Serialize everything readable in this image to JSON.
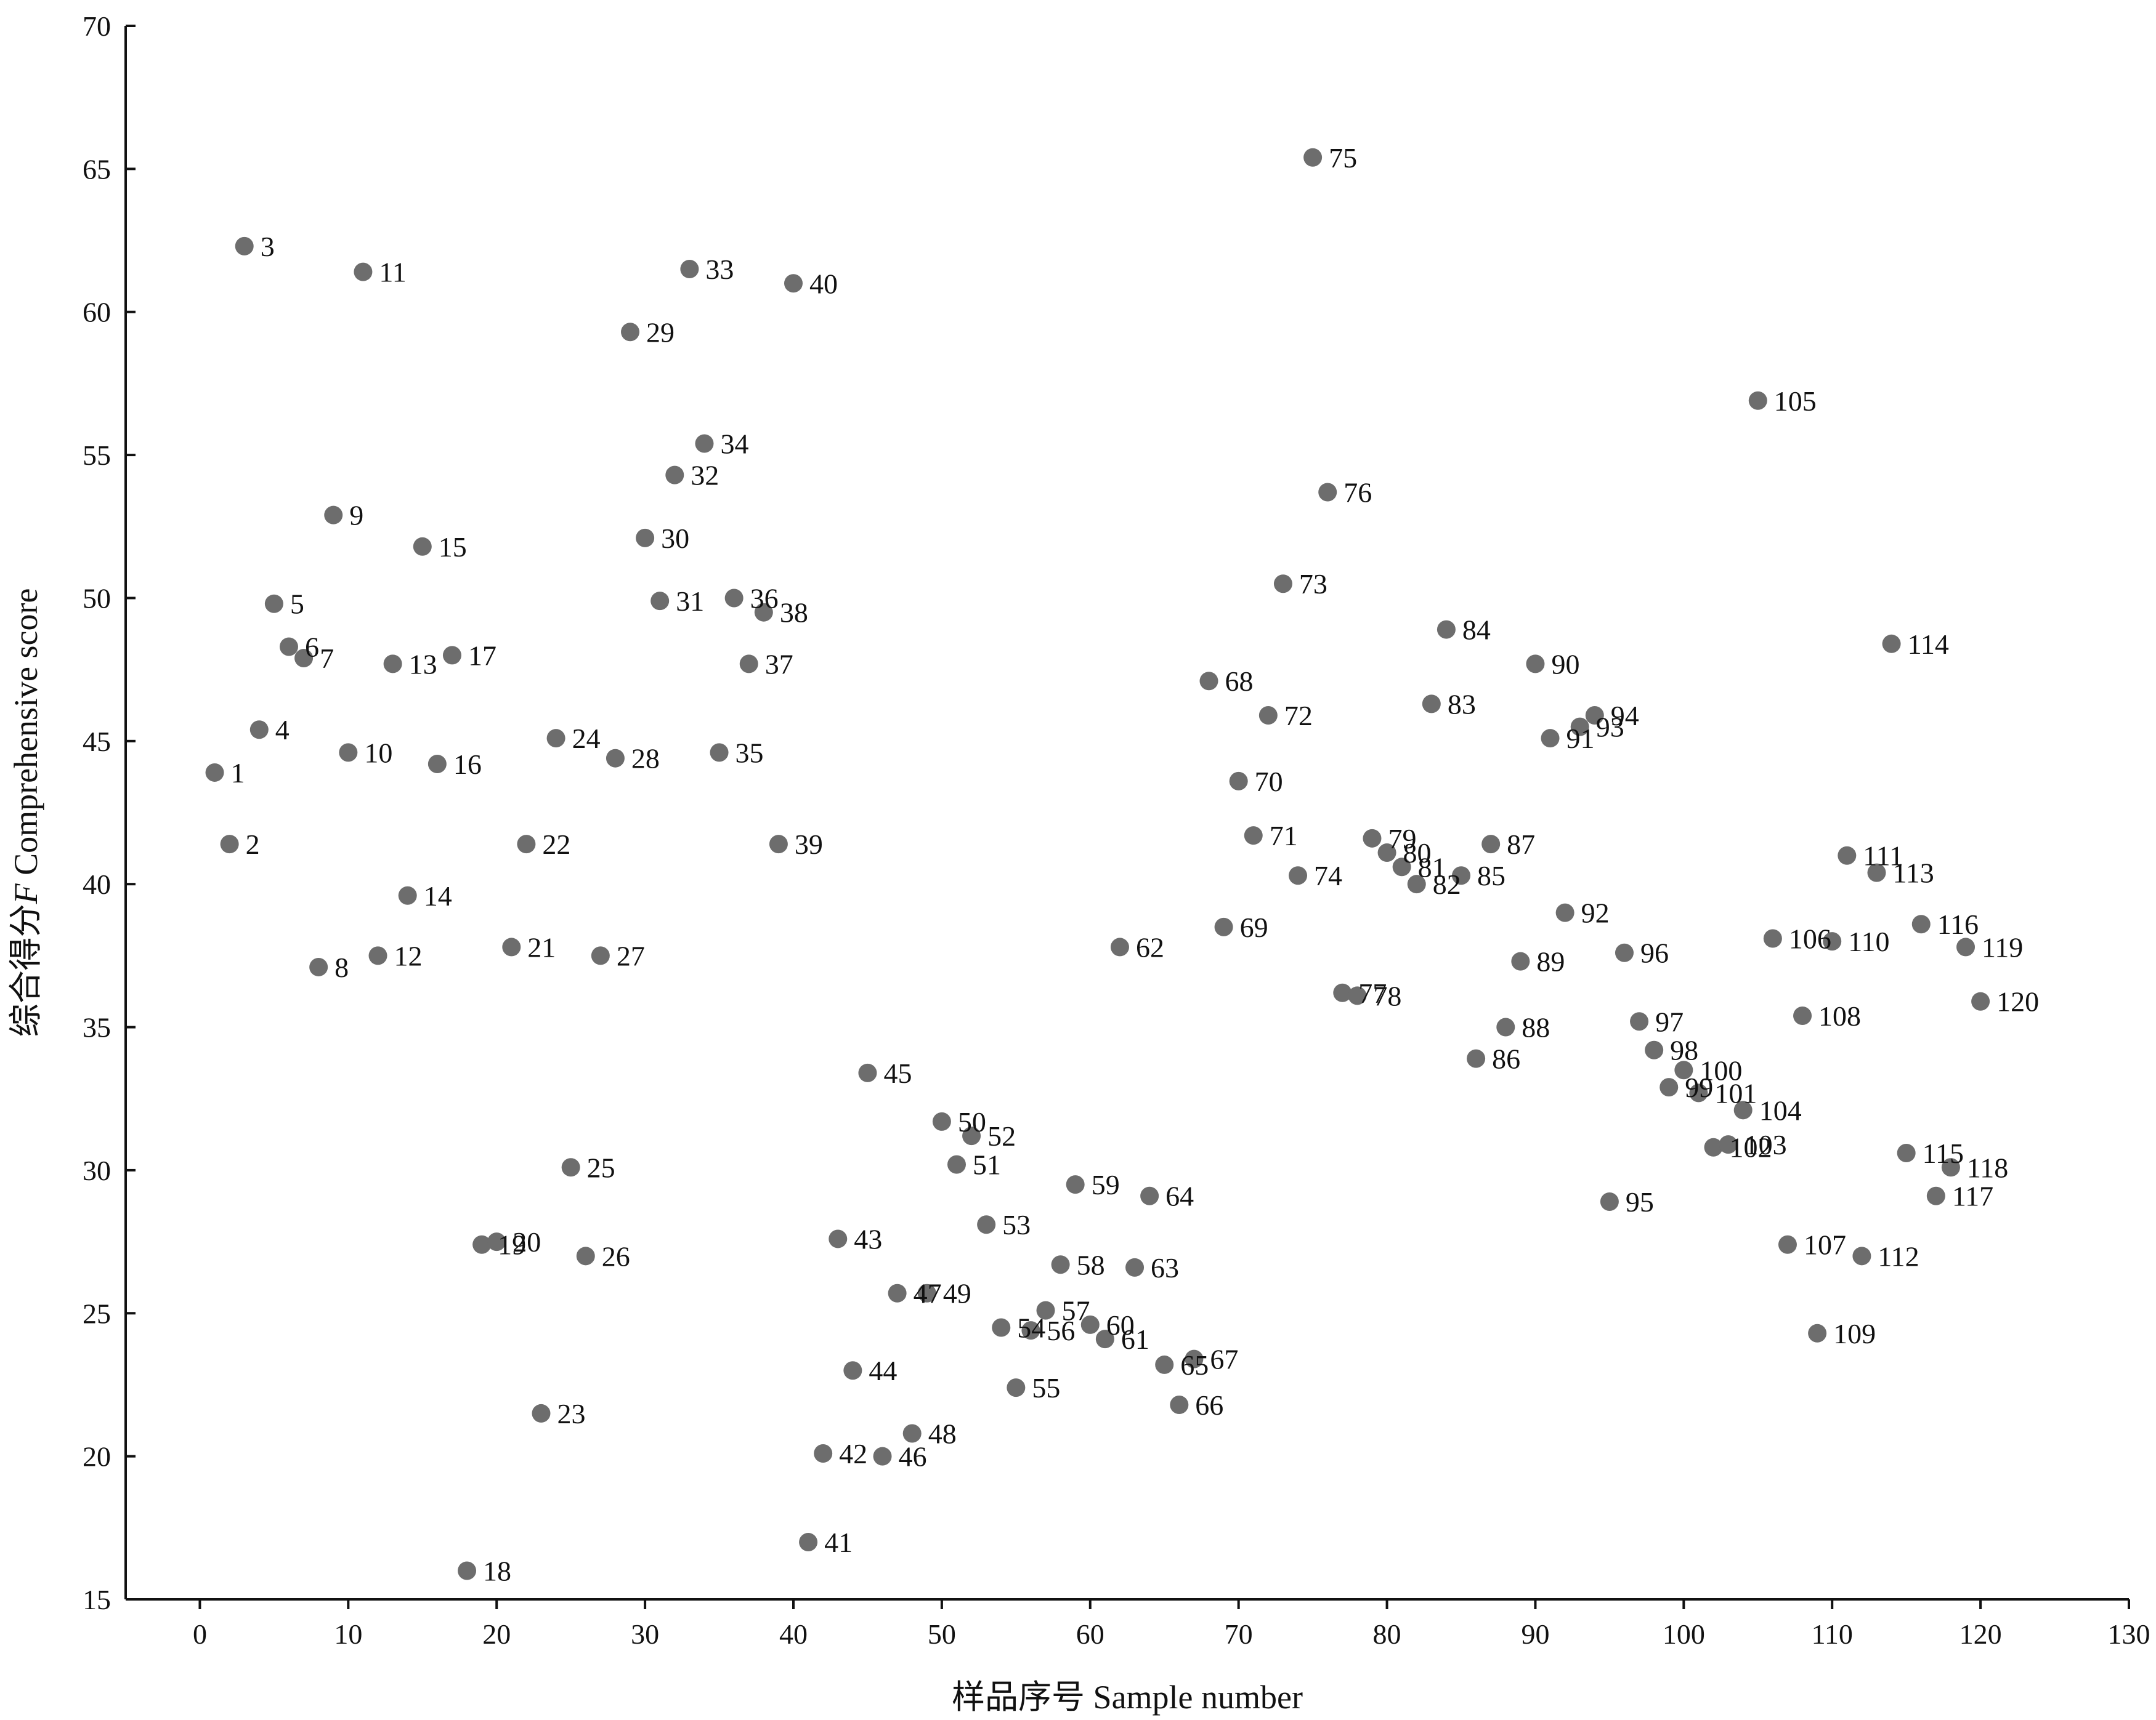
{
  "chart_data": {
    "type": "scatter",
    "xlabel": "样品序号 Sample number",
    "ylabel_prefix": "综合得分",
    "ylabel_var": "F",
    "ylabel_suffix": " Comprehensive score",
    "xlim": [
      -5,
      130
    ],
    "ylim": [
      15,
      70
    ],
    "xticks": [
      0,
      10,
      20,
      30,
      40,
      50,
      60,
      70,
      80,
      90,
      100,
      110,
      120,
      130
    ],
    "yticks": [
      15,
      20,
      25,
      30,
      35,
      40,
      45,
      50,
      55,
      60,
      65,
      70
    ],
    "grid": false,
    "legend": "none",
    "point_color": "#6d6d6d",
    "points": [
      {
        "label": "1",
        "x": 1,
        "y": 43.9
      },
      {
        "label": "2",
        "x": 2,
        "y": 41.4
      },
      {
        "label": "3",
        "x": 3,
        "y": 62.3
      },
      {
        "label": "4",
        "x": 4,
        "y": 45.4
      },
      {
        "label": "5",
        "x": 5,
        "y": 49.8
      },
      {
        "label": "6",
        "x": 6,
        "y": 48.3
      },
      {
        "label": "7",
        "x": 7,
        "y": 47.9
      },
      {
        "label": "8",
        "x": 8,
        "y": 37.1
      },
      {
        "label": "9",
        "x": 9,
        "y": 52.9
      },
      {
        "label": "10",
        "x": 10,
        "y": 44.6
      },
      {
        "label": "11",
        "x": 11,
        "y": 61.4
      },
      {
        "label": "12",
        "x": 12,
        "y": 37.5
      },
      {
        "label": "13",
        "x": 13,
        "y": 47.7
      },
      {
        "label": "14",
        "x": 14,
        "y": 39.6
      },
      {
        "label": "15",
        "x": 15,
        "y": 51.8
      },
      {
        "label": "16",
        "x": 16,
        "y": 44.2
      },
      {
        "label": "17",
        "x": 17,
        "y": 48.0
      },
      {
        "label": "18",
        "x": 18,
        "y": 16.0
      },
      {
        "label": "19",
        "x": 19,
        "y": 27.4
      },
      {
        "label": "20",
        "x": 20,
        "y": 27.5
      },
      {
        "label": "21",
        "x": 21,
        "y": 37.8
      },
      {
        "label": "22",
        "x": 22,
        "y": 41.4
      },
      {
        "label": "23",
        "x": 23,
        "y": 21.5
      },
      {
        "label": "24",
        "x": 24,
        "y": 45.1
      },
      {
        "label": "25",
        "x": 25,
        "y": 30.1
      },
      {
        "label": "26",
        "x": 26,
        "y": 27.0
      },
      {
        "label": "27",
        "x": 27,
        "y": 37.5
      },
      {
        "label": "28",
        "x": 28,
        "y": 44.4
      },
      {
        "label": "29",
        "x": 29,
        "y": 59.3
      },
      {
        "label": "30",
        "x": 30,
        "y": 52.1
      },
      {
        "label": "31",
        "x": 31,
        "y": 49.9
      },
      {
        "label": "32",
        "x": 32,
        "y": 54.3
      },
      {
        "label": "33",
        "x": 33,
        "y": 61.5
      },
      {
        "label": "34",
        "x": 34,
        "y": 55.4
      },
      {
        "label": "35",
        "x": 35,
        "y": 44.6
      },
      {
        "label": "36",
        "x": 36,
        "y": 50.0
      },
      {
        "label": "37",
        "x": 37,
        "y": 47.7
      },
      {
        "label": "38",
        "x": 38,
        "y": 49.5
      },
      {
        "label": "39",
        "x": 39,
        "y": 41.4
      },
      {
        "label": "40",
        "x": 40,
        "y": 61.0
      },
      {
        "label": "41",
        "x": 41,
        "y": 17.0
      },
      {
        "label": "42",
        "x": 42,
        "y": 20.1
      },
      {
        "label": "43",
        "x": 43,
        "y": 27.6
      },
      {
        "label": "44",
        "x": 44,
        "y": 23.0
      },
      {
        "label": "45",
        "x": 45,
        "y": 33.4
      },
      {
        "label": "46",
        "x": 46,
        "y": 20.0
      },
      {
        "label": "47",
        "x": 47,
        "y": 25.7
      },
      {
        "label": "48",
        "x": 48,
        "y": 20.8
      },
      {
        "label": "49",
        "x": 49,
        "y": 25.7
      },
      {
        "label": "50",
        "x": 50,
        "y": 31.7
      },
      {
        "label": "51",
        "x": 51,
        "y": 30.2
      },
      {
        "label": "52",
        "x": 52,
        "y": 31.2
      },
      {
        "label": "53",
        "x": 53,
        "y": 28.1
      },
      {
        "label": "54",
        "x": 54,
        "y": 24.5
      },
      {
        "label": "55",
        "x": 55,
        "y": 22.4
      },
      {
        "label": "56",
        "x": 56,
        "y": 24.4
      },
      {
        "label": "57",
        "x": 57,
        "y": 25.1
      },
      {
        "label": "58",
        "x": 58,
        "y": 26.7
      },
      {
        "label": "59",
        "x": 59,
        "y": 29.5
      },
      {
        "label": "60",
        "x": 60,
        "y": 24.6
      },
      {
        "label": "61",
        "x": 61,
        "y": 24.1
      },
      {
        "label": "62",
        "x": 62,
        "y": 37.8
      },
      {
        "label": "63",
        "x": 63,
        "y": 26.6
      },
      {
        "label": "64",
        "x": 64,
        "y": 29.1
      },
      {
        "label": "65",
        "x": 65,
        "y": 23.2
      },
      {
        "label": "66",
        "x": 66,
        "y": 21.8
      },
      {
        "label": "67",
        "x": 67,
        "y": 23.4
      },
      {
        "label": "68",
        "x": 68,
        "y": 47.1
      },
      {
        "label": "69",
        "x": 69,
        "y": 38.5
      },
      {
        "label": "70",
        "x": 70,
        "y": 43.6
      },
      {
        "label": "71",
        "x": 71,
        "y": 41.7
      },
      {
        "label": "72",
        "x": 72,
        "y": 45.9
      },
      {
        "label": "73",
        "x": 73,
        "y": 50.5
      },
      {
        "label": "74",
        "x": 74,
        "y": 40.3
      },
      {
        "label": "75",
        "x": 75,
        "y": 65.4
      },
      {
        "label": "76",
        "x": 76,
        "y": 53.7
      },
      {
        "label": "77",
        "x": 77,
        "y": 36.2
      },
      {
        "label": "78",
        "x": 78,
        "y": 36.1
      },
      {
        "label": "79",
        "x": 79,
        "y": 41.6
      },
      {
        "label": "80",
        "x": 80,
        "y": 41.1
      },
      {
        "label": "81",
        "x": 81,
        "y": 40.6
      },
      {
        "label": "82",
        "x": 82,
        "y": 40.0
      },
      {
        "label": "83",
        "x": 83,
        "y": 46.3
      },
      {
        "label": "84",
        "x": 84,
        "y": 48.9
      },
      {
        "label": "85",
        "x": 85,
        "y": 40.3
      },
      {
        "label": "86",
        "x": 86,
        "y": 33.9
      },
      {
        "label": "87",
        "x": 87,
        "y": 41.4
      },
      {
        "label": "88",
        "x": 88,
        "y": 35.0
      },
      {
        "label": "89",
        "x": 89,
        "y": 37.3
      },
      {
        "label": "90",
        "x": 90,
        "y": 47.7
      },
      {
        "label": "91",
        "x": 91,
        "y": 45.1
      },
      {
        "label": "92",
        "x": 92,
        "y": 39.0
      },
      {
        "label": "93",
        "x": 93,
        "y": 45.5
      },
      {
        "label": "94",
        "x": 94,
        "y": 45.9
      },
      {
        "label": "95",
        "x": 95,
        "y": 28.9
      },
      {
        "label": "96",
        "x": 96,
        "y": 37.6
      },
      {
        "label": "97",
        "x": 97,
        "y": 35.2
      },
      {
        "label": "98",
        "x": 98,
        "y": 34.2
      },
      {
        "label": "99",
        "x": 99,
        "y": 32.9
      },
      {
        "label": "100",
        "x": 100,
        "y": 33.5
      },
      {
        "label": "101",
        "x": 101,
        "y": 32.7
      },
      {
        "label": "102",
        "x": 102,
        "y": 30.8
      },
      {
        "label": "103",
        "x": 103,
        "y": 30.9
      },
      {
        "label": "104",
        "x": 104,
        "y": 32.1
      },
      {
        "label": "105",
        "x": 105,
        "y": 56.9
      },
      {
        "label": "106",
        "x": 106,
        "y": 38.1
      },
      {
        "label": "107",
        "x": 107,
        "y": 27.4
      },
      {
        "label": "108",
        "x": 108,
        "y": 35.4
      },
      {
        "label": "109",
        "x": 109,
        "y": 24.3
      },
      {
        "label": "110",
        "x": 110,
        "y": 38.0
      },
      {
        "label": "111",
        "x": 111,
        "y": 41.0
      },
      {
        "label": "112",
        "x": 112,
        "y": 27.0
      },
      {
        "label": "113",
        "x": 113,
        "y": 40.4
      },
      {
        "label": "114",
        "x": 114,
        "y": 48.4
      },
      {
        "label": "115",
        "x": 115,
        "y": 30.6
      },
      {
        "label": "116",
        "x": 116,
        "y": 38.6
      },
      {
        "label": "117",
        "x": 117,
        "y": 29.1
      },
      {
        "label": "118",
        "x": 118,
        "y": 30.1
      },
      {
        "label": "119",
        "x": 119,
        "y": 37.8
      },
      {
        "label": "120",
        "x": 120,
        "y": 35.9
      }
    ]
  }
}
